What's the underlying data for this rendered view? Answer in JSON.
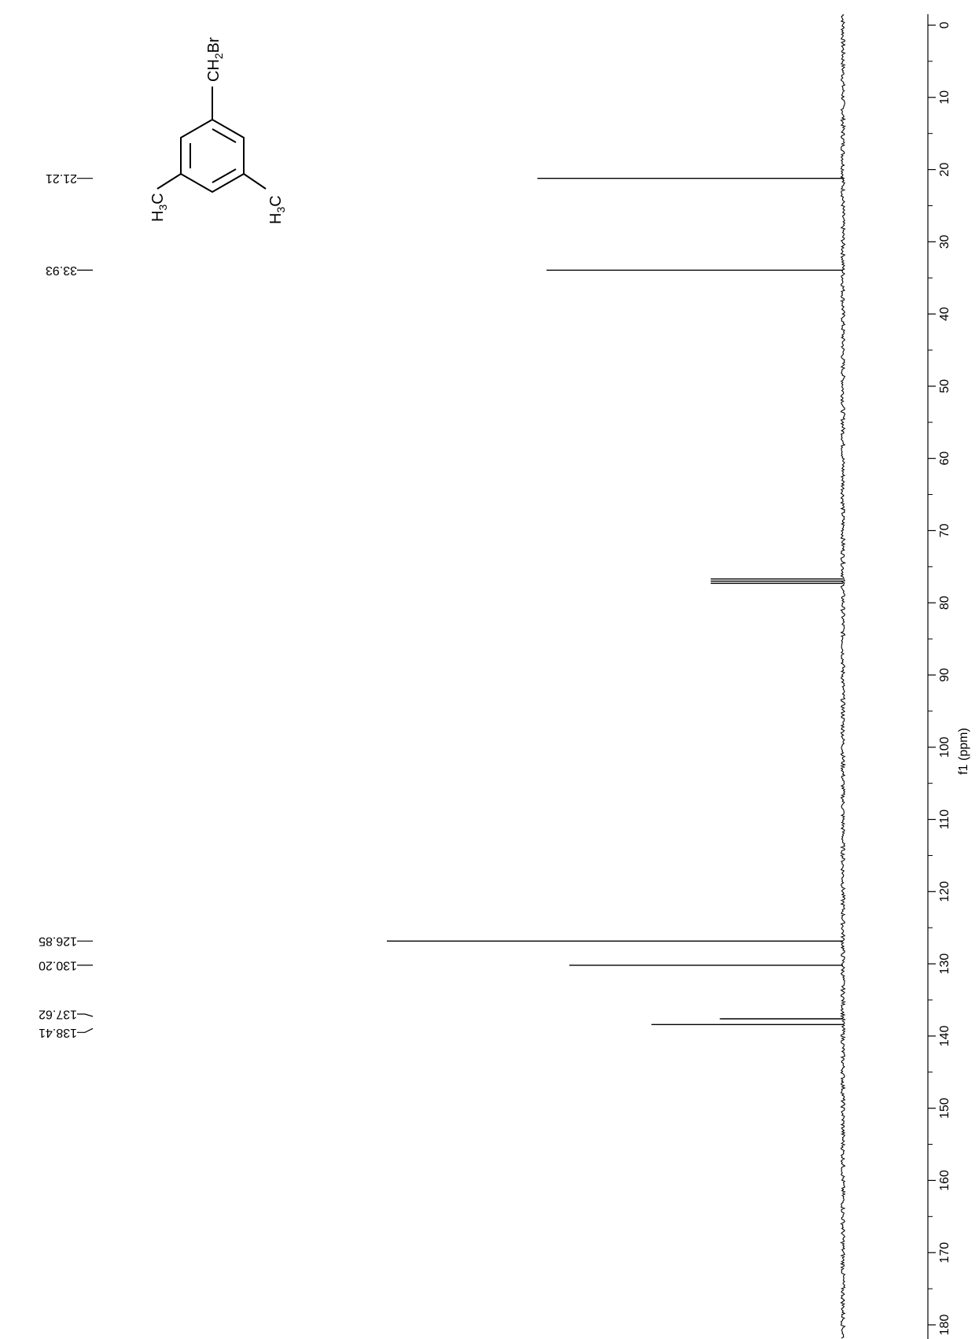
{
  "chart_data": {
    "type": "line",
    "xlabel": "f1 (ppm)",
    "xlim": [
      0,
      180
    ],
    "ticks": [
      0,
      10,
      20,
      30,
      40,
      50,
      60,
      70,
      80,
      90,
      100,
      110,
      120,
      130,
      140,
      150,
      160,
      170,
      180
    ],
    "peaks": [
      {
        "ppm": 21.21,
        "intensity": 0.67
      },
      {
        "ppm": 33.93,
        "intensity": 0.65
      },
      {
        "ppm": 76.7,
        "intensity": 0.29
      },
      {
        "ppm": 77.0,
        "intensity": 0.29
      },
      {
        "ppm": 77.3,
        "intensity": 0.29
      },
      {
        "ppm": 126.85,
        "intensity": 1.0
      },
      {
        "ppm": 130.2,
        "intensity": 0.6
      },
      {
        "ppm": 137.62,
        "intensity": 0.27
      },
      {
        "ppm": 138.41,
        "intensity": 0.42
      }
    ],
    "peak_labels": [
      "21.21",
      "33.93",
      "126.85",
      "130.20",
      "137.62",
      "138.41"
    ]
  },
  "molecule": {
    "substituent_top": {
      "main": "CH",
      "sub": "2",
      "tail": "Br"
    },
    "substituent_left": {
      "main": "H",
      "sub": "3",
      "tail": "C"
    },
    "substituent_right": {
      "main": "H",
      "sub": "3",
      "tail": "C"
    }
  }
}
